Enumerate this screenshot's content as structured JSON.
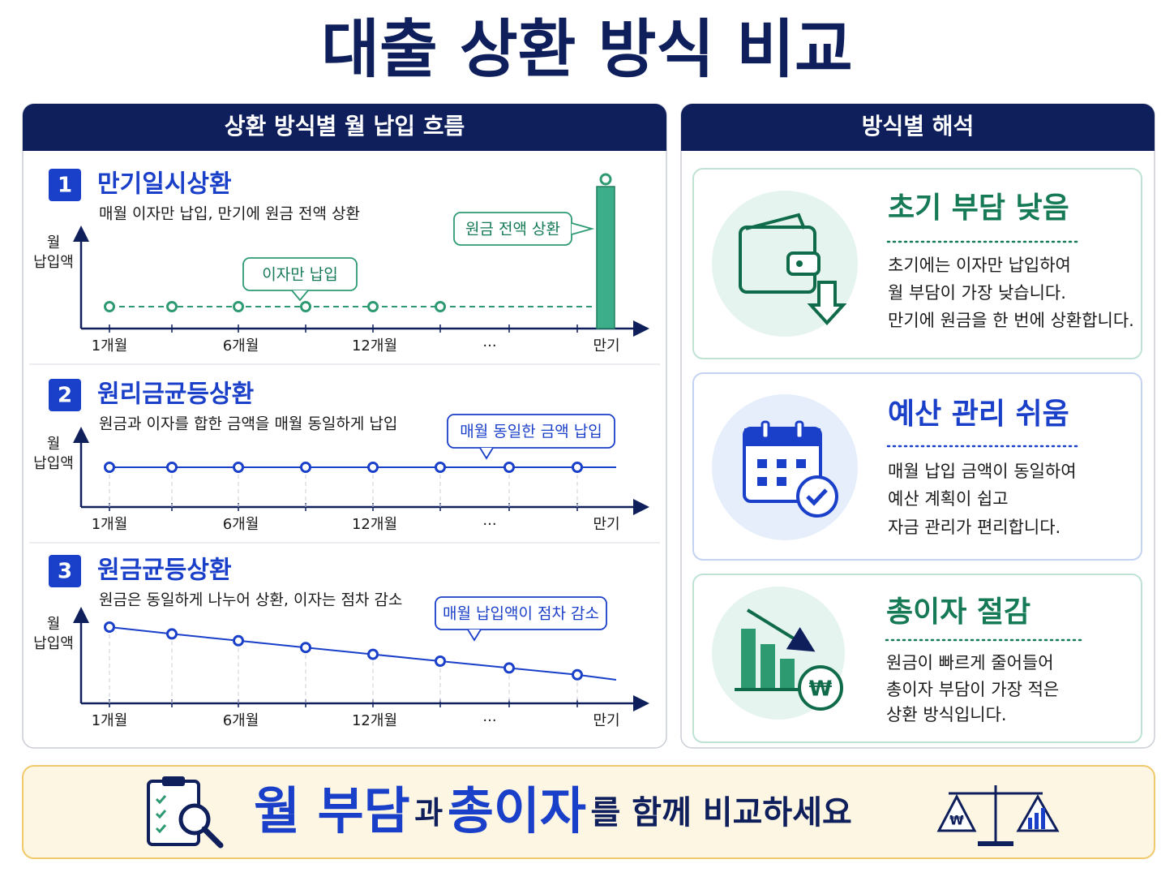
{
  "title": "대출 상환 방식 비교",
  "left_panel": {
    "header": "상환 방식별 월 납입 흐름",
    "methods": [
      {
        "number": 1,
        "name": "만기일시상환",
        "description": "매월 이자만 납입, 만기에 원금 전액 상환",
        "y_label": [
          "월",
          "납입액"
        ],
        "x_labels": [
          "1개월",
          "6개월",
          "12개월",
          "···",
          "만기"
        ],
        "callouts": [
          "이자만 납입",
          "원금 전액 상환"
        ]
      },
      {
        "number": 2,
        "name": "원리금균등상환",
        "description": "원금과 이자를 합한 금액을 매월 동일하게 납입",
        "y_label": [
          "월",
          "납입액"
        ],
        "x_labels": [
          "1개월",
          "6개월",
          "12개월",
          "···",
          "만기"
        ],
        "callouts": [
          "매월 동일한 금액 납입"
        ]
      },
      {
        "number": 3,
        "name": "원금균등상환",
        "description": "원금은 동일하게 나누어 상환, 이자는 점차 감소",
        "y_label": [
          "월",
          "납입액"
        ],
        "x_labels": [
          "1개월",
          "6개월",
          "12개월",
          "···",
          "만기"
        ],
        "callouts": [
          "매월 납입액이 점차 감소"
        ]
      }
    ]
  },
  "right_panel": {
    "header": "방식별 해석",
    "cards": [
      {
        "title": "초기 부담 낮음",
        "lines": [
          "초기에는 이자만 납입하여",
          "월 부담이 가장 낮습니다.",
          "만기에 원금을 한 번에 상환합니다."
        ]
      },
      {
        "title": "예산 관리 쉬움",
        "lines": [
          "매월 납입 금액이 동일하여",
          "예산 계획이 쉽고",
          "자금 관리가 편리합니다."
        ]
      },
      {
        "title": "총이자 절감",
        "lines": [
          "원금이 빠르게 줄어들어",
          "총이자 부담이 가장 적은",
          "상환 방식입니다."
        ]
      }
    ]
  },
  "footer": {
    "parts": [
      "월 부담",
      "과",
      "총이자",
      "를 함께 비교하세요"
    ],
    "currency_symbol": "₩"
  }
}
